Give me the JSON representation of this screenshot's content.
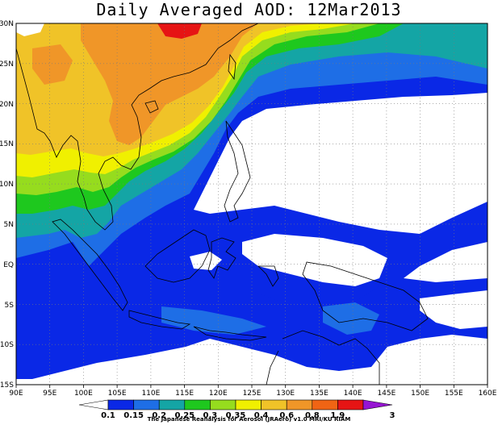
{
  "title": "Daily Averaged AOD: 12Mar2013",
  "credit": "The Japanese Reanalysis for Aerosol (JRAero) v1.0 MRI/KU RIAM",
  "map": {
    "lon_labels": [
      "90E",
      "95E",
      "100E",
      "105E",
      "110E",
      "115E",
      "120E",
      "125E",
      "130E",
      "135E",
      "140E",
      "145E",
      "150E",
      "155E",
      "160E"
    ],
    "lat_labels": [
      "30N",
      "25N",
      "20N",
      "15N",
      "10N",
      "5N",
      "EQ",
      "5S",
      "10S",
      "15S"
    ],
    "lon_range": [
      90,
      160
    ],
    "lat_range": [
      -15,
      30
    ],
    "grid": "dotted"
  },
  "colorbar": {
    "levels": [
      "0.1",
      "0.15",
      "0.2",
      "0.25",
      "0.3",
      "0.35",
      "0.4",
      "0.6",
      "0.8",
      "1.9",
      "3"
    ],
    "colors": [
      "#ffffff",
      "#0a28e6",
      "#1e6ee6",
      "#14a5a5",
      "#1ec81e",
      "#96dc1e",
      "#f0f000",
      "#f0c328",
      "#f09628",
      "#f06414",
      "#e61414",
      "#9614d2"
    ]
  }
}
